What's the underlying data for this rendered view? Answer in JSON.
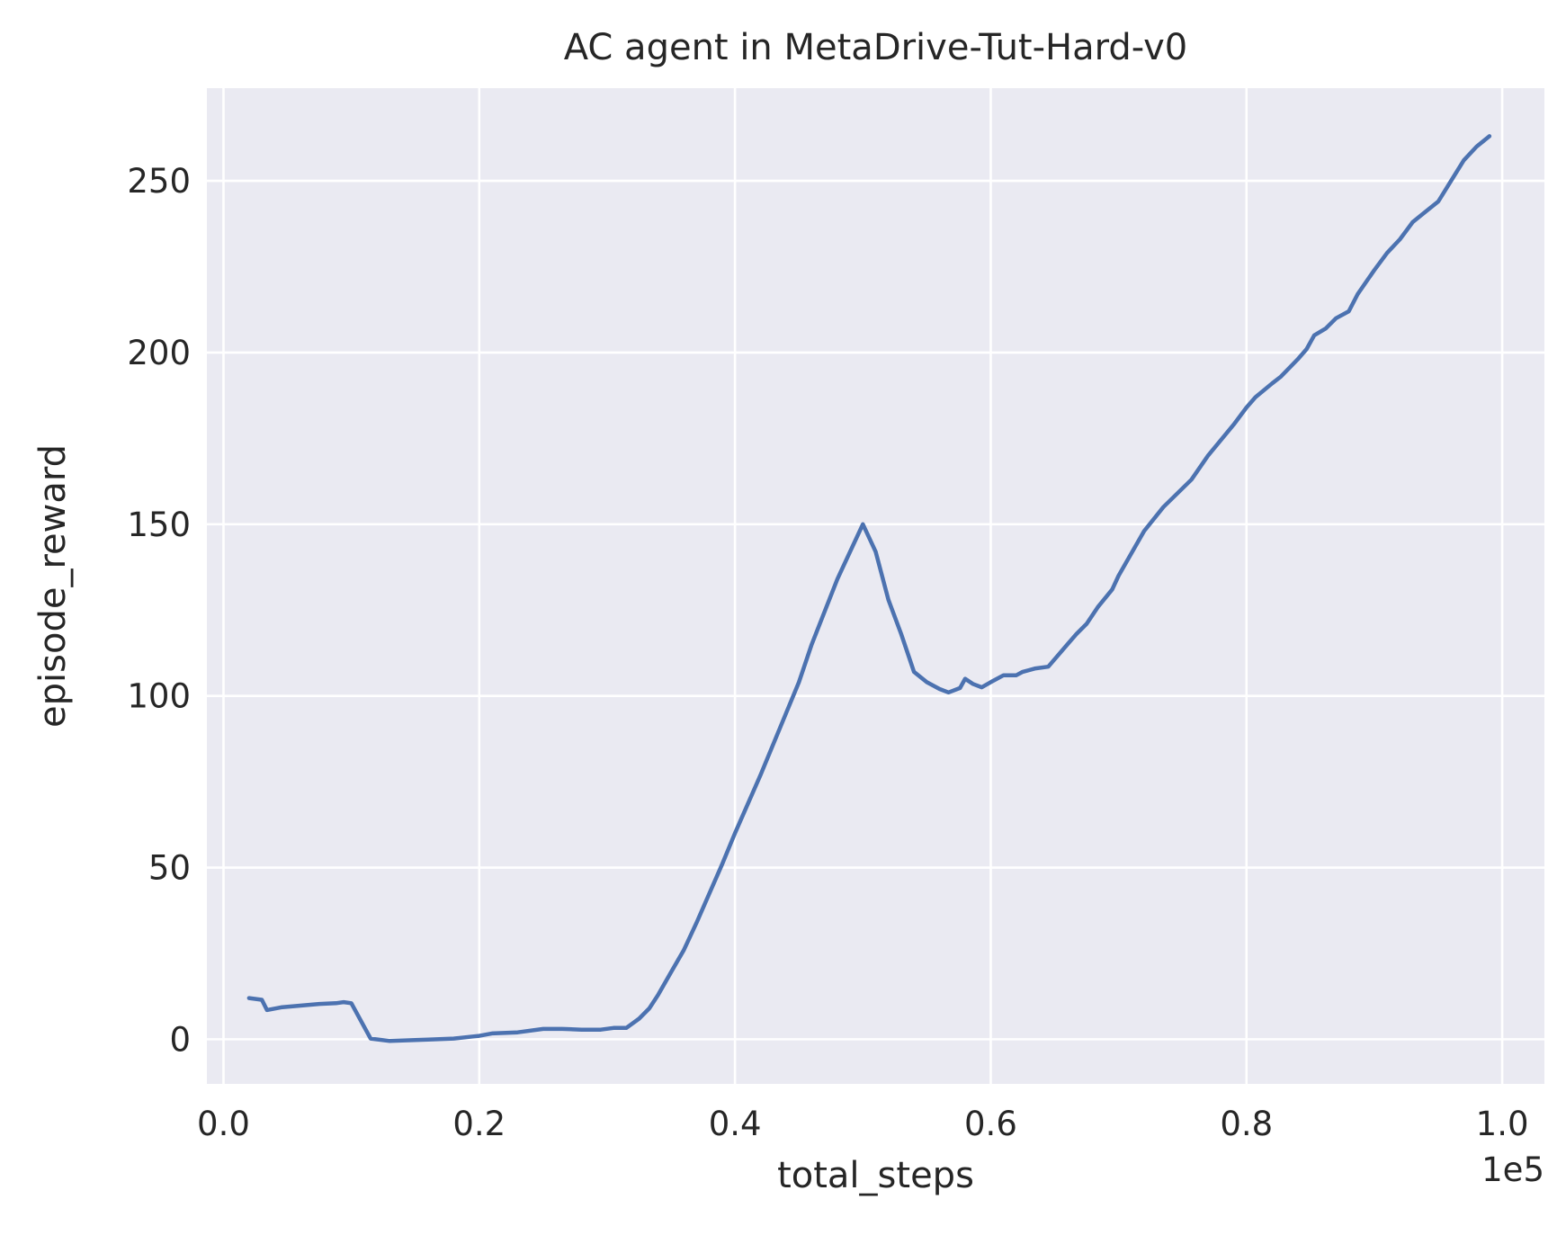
{
  "chart_data": {
    "type": "line",
    "title": "AC agent in MetaDrive-Tut-Hard-v0",
    "xlabel": "total_steps",
    "ylabel": "episode_reward",
    "x_offset_text": "1e5",
    "xlim": [
      -0.013,
      1.033
    ],
    "ylim": [
      -13,
      277
    ],
    "xticks": [
      0.0,
      0.2,
      0.4,
      0.6,
      0.8,
      1.0
    ],
    "xtick_labels": [
      "0.0",
      "0.2",
      "0.4",
      "0.6",
      "0.8",
      "1.0"
    ],
    "yticks": [
      0,
      50,
      100,
      150,
      200,
      250
    ],
    "ytick_labels": [
      "0",
      "50",
      "100",
      "150",
      "200",
      "250"
    ],
    "grid": true,
    "series_color": "#4c72b0",
    "series": [
      {
        "x": [
          0.02,
          0.03,
          0.034,
          0.045,
          0.06,
          0.075,
          0.088,
          0.094,
          0.1,
          0.115,
          0.13,
          0.145,
          0.16,
          0.18,
          0.195,
          0.2,
          0.21,
          0.23,
          0.25,
          0.265,
          0.28,
          0.295,
          0.305,
          0.315,
          0.325,
          0.333,
          0.34,
          0.35,
          0.36,
          0.37,
          0.38,
          0.39,
          0.4,
          0.42,
          0.44,
          0.45,
          0.46,
          0.48,
          0.49,
          0.5,
          0.51,
          0.52,
          0.53,
          0.54,
          0.55,
          0.56,
          0.567,
          0.576,
          0.58,
          0.586,
          0.593,
          0.6,
          0.61,
          0.62,
          0.625,
          0.635,
          0.645,
          0.66,
          0.667,
          0.675,
          0.684,
          0.695,
          0.7,
          0.72,
          0.735,
          0.757,
          0.77,
          0.79,
          0.8,
          0.807,
          0.82,
          0.827,
          0.84,
          0.847,
          0.853,
          0.862,
          0.87,
          0.88,
          0.887,
          0.9,
          0.91,
          0.92,
          0.93,
          0.94,
          0.95,
          0.96,
          0.97,
          0.98,
          0.99
        ],
        "y": [
          12,
          11.5,
          8.5,
          9.3,
          9.8,
          10.3,
          10.5,
          10.8,
          10.5,
          0.2,
          -0.5,
          -0.3,
          -0.1,
          0.2,
          0.8,
          1,
          1.7,
          2,
          3,
          3,
          2.8,
          2.8,
          3.3,
          3.3,
          6,
          9,
          13,
          19.5,
          26,
          34,
          42.5,
          51,
          60,
          77,
          95,
          104,
          115,
          134,
          142,
          150,
          142,
          128,
          118,
          107,
          104,
          102,
          101,
          102.3,
          105,
          103.5,
          102.5,
          104,
          106,
          106,
          107,
          108,
          108.5,
          115,
          118,
          121,
          126,
          131,
          135,
          148,
          155,
          163,
          170,
          179,
          184,
          187,
          191,
          193,
          198,
          201,
          205,
          207,
          210,
          212,
          217,
          224,
          229,
          233,
          238,
          241,
          244,
          250,
          256,
          260,
          263
        ]
      }
    ]
  }
}
